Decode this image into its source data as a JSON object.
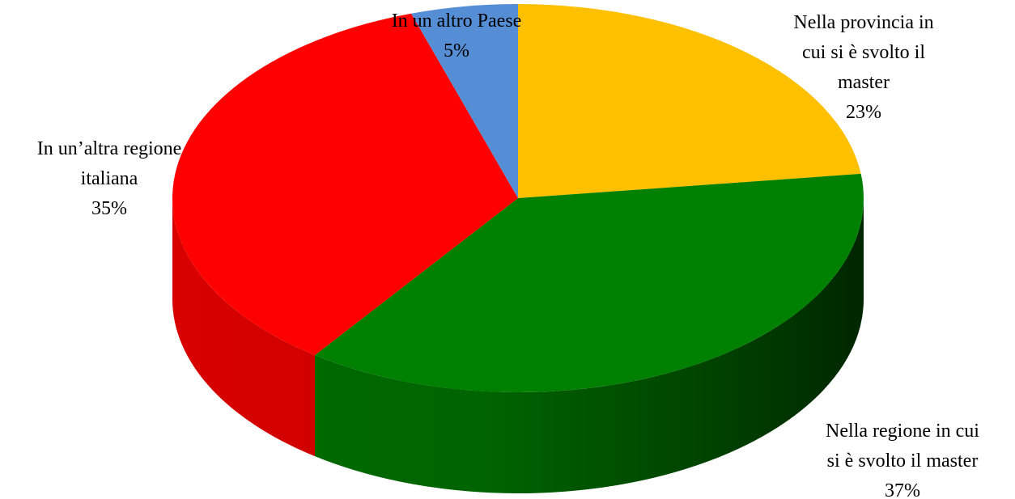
{
  "chart_data": {
    "type": "pie",
    "style": "3d",
    "title": "",
    "slices": [
      {
        "key": "provincia",
        "label_lines": [
          "Nella provincia in",
          "cui si è svolto il",
          "master"
        ],
        "value": 23,
        "value_label": "23%",
        "color": "#FFC000"
      },
      {
        "key": "regione",
        "label_lines": [
          "Nella regione in cui",
          "si è svolto il master"
        ],
        "value": 37,
        "value_label": "37%",
        "color": "#008000"
      },
      {
        "key": "altra-regione",
        "label_lines": [
          "In un’altra regione",
          "italiana"
        ],
        "value": 35,
        "value_label": "35%",
        "color": "#FF0000"
      },
      {
        "key": "altro-paese",
        "label_lines": [
          "In un altro Paese"
        ],
        "value": 5,
        "value_label": "5%",
        "color": "#558ED5"
      }
    ]
  }
}
